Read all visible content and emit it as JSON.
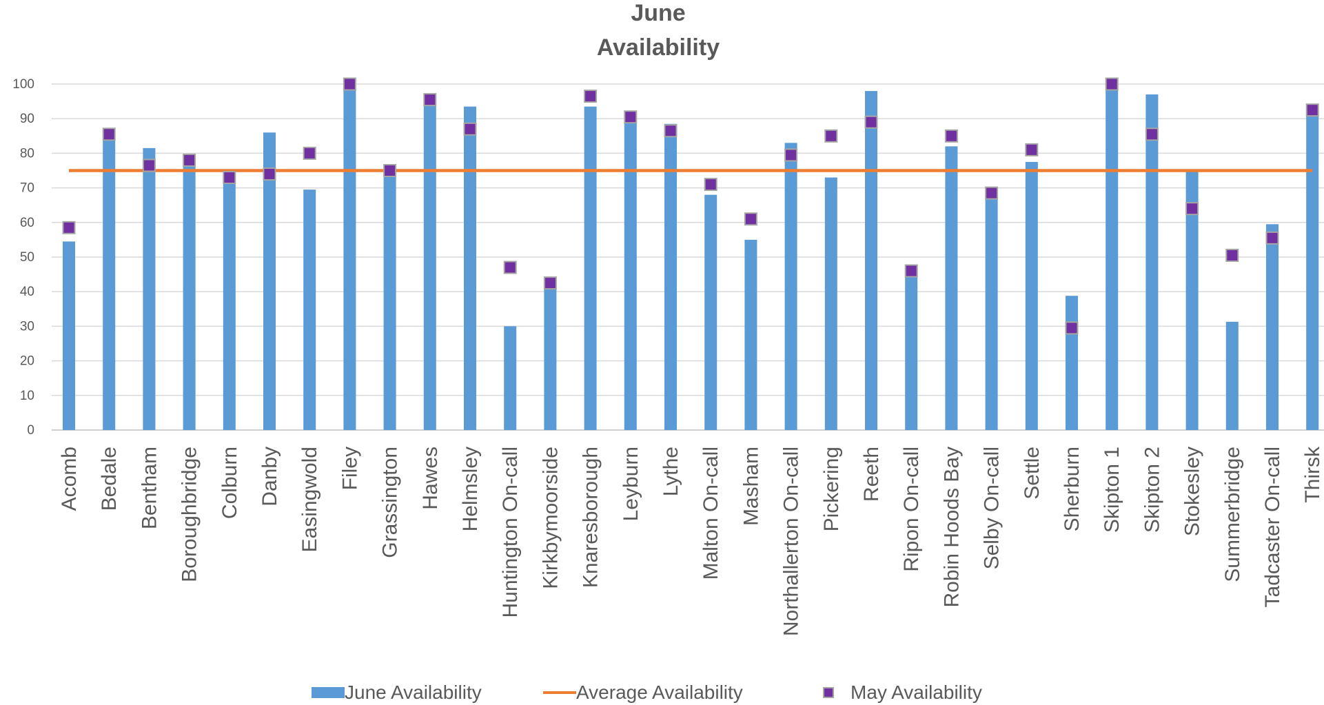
{
  "chart_data": {
    "type": "bar",
    "title_lines": [
      "June",
      "Availability"
    ],
    "xlabel": "",
    "ylabel": "",
    "ylim": [
      0,
      100
    ],
    "yticks": [
      0,
      10,
      20,
      30,
      40,
      50,
      60,
      70,
      80,
      90,
      100
    ],
    "grid": true,
    "legend_position": "bottom",
    "categories": [
      "Acomb",
      "Bedale",
      "Bentham",
      "Boroughbridge",
      "Colburn",
      "Danby",
      "Easingwold",
      "Filey",
      "Grassington",
      "Hawes",
      "Helmsley",
      "Huntington On-call",
      "Kirkbymoorside",
      "Knaresborough",
      "Leyburn",
      "Lythe",
      "Malton On-call",
      "Masham",
      "Northallerton On-call",
      "Pickering",
      "Reeth",
      "Ripon On-call",
      "Robin Hoods Bay",
      "Selby On-call",
      "Settle",
      "Sherburn",
      "Skipton 1",
      "Skipton 2",
      "Stokesley",
      "Summerbridge",
      "Tadcaster On-call",
      "Thirsk"
    ],
    "series": [
      {
        "name": "June Availability",
        "kind": "bar",
        "color": "#5b9bd5",
        "values": [
          54.5,
          85,
          81.5,
          76.5,
          75,
          86,
          69.5,
          100,
          75,
          95.5,
          93.5,
          30,
          43,
          93.5,
          90.5,
          88.5,
          68,
          55,
          83,
          73,
          98,
          46.5,
          82,
          67,
          77.5,
          38.8,
          100,
          97,
          74.8,
          31.3,
          59.5,
          92.5
        ]
      },
      {
        "name": "Average Availability",
        "kind": "line",
        "color": "#ed7d31",
        "values": [
          75,
          75,
          75,
          75,
          75,
          75,
          75,
          75,
          75,
          75,
          75,
          75,
          75,
          75,
          75,
          75,
          75,
          75,
          75,
          75,
          75,
          75,
          75,
          75,
          75,
          75,
          75,
          75,
          75,
          75,
          75,
          75
        ]
      },
      {
        "name": "May Availability",
        "kind": "marker",
        "color": "#7030a0",
        "values": [
          58.5,
          85.5,
          76.5,
          78,
          73,
          74,
          80,
          100,
          75,
          95.5,
          87,
          47,
          42.5,
          96.5,
          90.5,
          86.5,
          71,
          61,
          79.5,
          85,
          89,
          46,
          85,
          68.5,
          81,
          29.5,
          100,
          85.5,
          64,
          50.5,
          55.5,
          92.5
        ]
      }
    ]
  }
}
